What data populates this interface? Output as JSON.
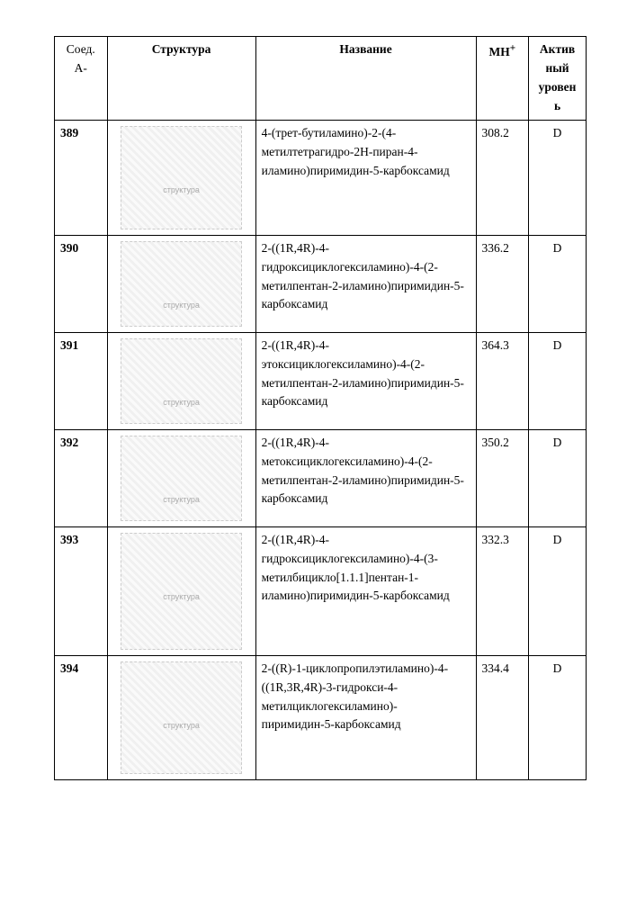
{
  "columns": {
    "c1": "Соед. А-",
    "c2": "Структура",
    "c3": "Название",
    "c4": "MH",
    "c4_sup": "+",
    "c5_line1": "Актив",
    "c5_line2": "ный",
    "c5_line3": "уровен",
    "c5_line4": "ь"
  },
  "rows": [
    {
      "id": "389",
      "struct_label": "структура",
      "name": "4-(трет-бутиламино)-2-(4-метилтетрагидро-2H-пиран-4-иламино)пиримидин-5-карбоксамид",
      "mh": "308.2",
      "act": "D",
      "cls": "h-389"
    },
    {
      "id": "390",
      "struct_label": "структура",
      "name": "2-((1R,4R)-4-гидроксициклогексиламино)-4-(2-метилпентан-2-иламино)пиримидин-5-карбоксамид",
      "mh": "336.2",
      "act": "D",
      "cls": "h-390"
    },
    {
      "id": "391",
      "struct_label": "структура",
      "name": "2-((1R,4R)-4-этоксициклогексиламино)-4-(2-метилпентан-2-иламино)пиримидин-5-карбоксамид",
      "mh": "364.3",
      "act": "D",
      "cls": "h-391"
    },
    {
      "id": "392",
      "struct_label": "структура",
      "name": "2-((1R,4R)-4-метоксициклогексиламино)-4-(2-метилпентан-2-иламино)пиримидин-5-карбоксамид",
      "mh": "350.2",
      "act": "D",
      "cls": "h-392"
    },
    {
      "id": "393",
      "struct_label": "структура",
      "name": "2-((1R,4R)-4-гидроксициклогексиламино)-4-(3-метилбицикло[1.1.1]пентан-1-иламино)пиримидин-5-карбоксамид",
      "mh": "332.3",
      "act": "D",
      "cls": "h-393"
    },
    {
      "id": "394",
      "struct_label": "структура",
      "name": "2-((R)-1-циклопропилэтиламино)-4-((1R,3R,4R)-3-гидрокси-4-метилциклогексиламино)-пиримидин-5-карбоксамид",
      "mh": "334.4",
      "act": "D",
      "cls": "h-394"
    }
  ]
}
